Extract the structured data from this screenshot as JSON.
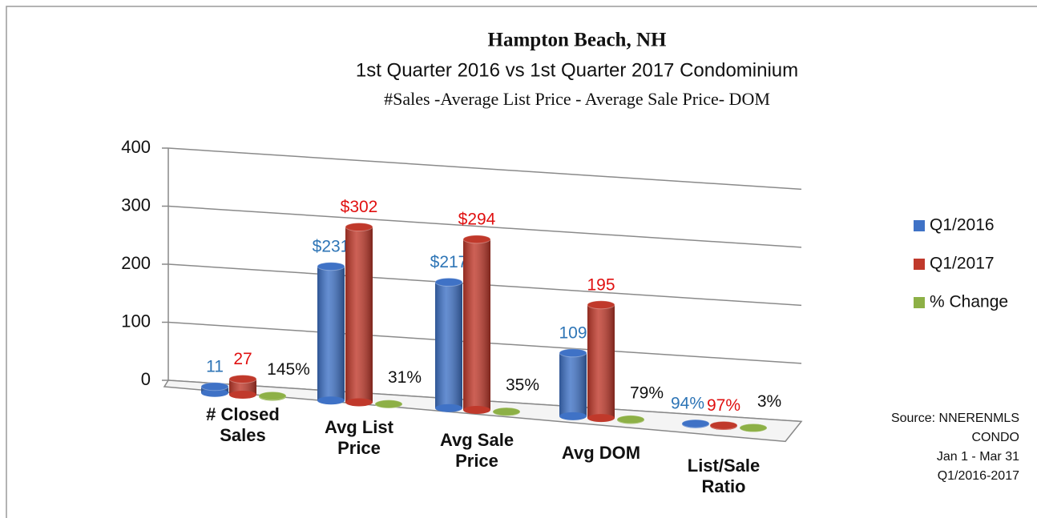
{
  "chart_data": {
    "type": "bar3d",
    "title": "Hampton Beach, NH",
    "subtitle": "1st Quarter 2016 vs 1st Quarter 2017 Condominium",
    "subtitle2": "#Sales -Average List Price - Average Sale Price- DOM",
    "categories": [
      "# Closed Sales",
      "Avg List Price",
      "Avg Sale Price",
      "Avg DOM",
      "List/Sale Ratio"
    ],
    "series": [
      {
        "name": "Q1/2016",
        "color": "#3f72c6",
        "label_color": "#2e75b6",
        "values": [
          11,
          231,
          217,
          109,
          0.94
        ],
        "value_labels": [
          "11",
          "$231",
          "$217",
          "109",
          "94%"
        ]
      },
      {
        "name": "Q1/2017",
        "color": "#c0392b",
        "label_color": "#e01010",
        "values": [
          27,
          302,
          294,
          195,
          0.97
        ],
        "value_labels": [
          "27",
          "$302",
          "$294",
          "195",
          "97%"
        ]
      },
      {
        "name": "% Change",
        "color": "#8db046",
        "label_color": "#111111",
        "values": [
          1.45,
          0.31,
          0.35,
          0.79,
          0.03
        ],
        "value_labels": [
          "145%",
          "31%",
          "35%",
          "79%",
          "3%"
        ]
      }
    ],
    "ylim": [
      0,
      400
    ],
    "yticks": [
      0,
      100,
      200,
      300,
      400
    ],
    "grid": true,
    "legend": "right",
    "source": [
      "Source: NNERENMLS",
      "CONDO",
      "Jan 1 - Mar 31",
      "Q1/2016-2017"
    ]
  }
}
